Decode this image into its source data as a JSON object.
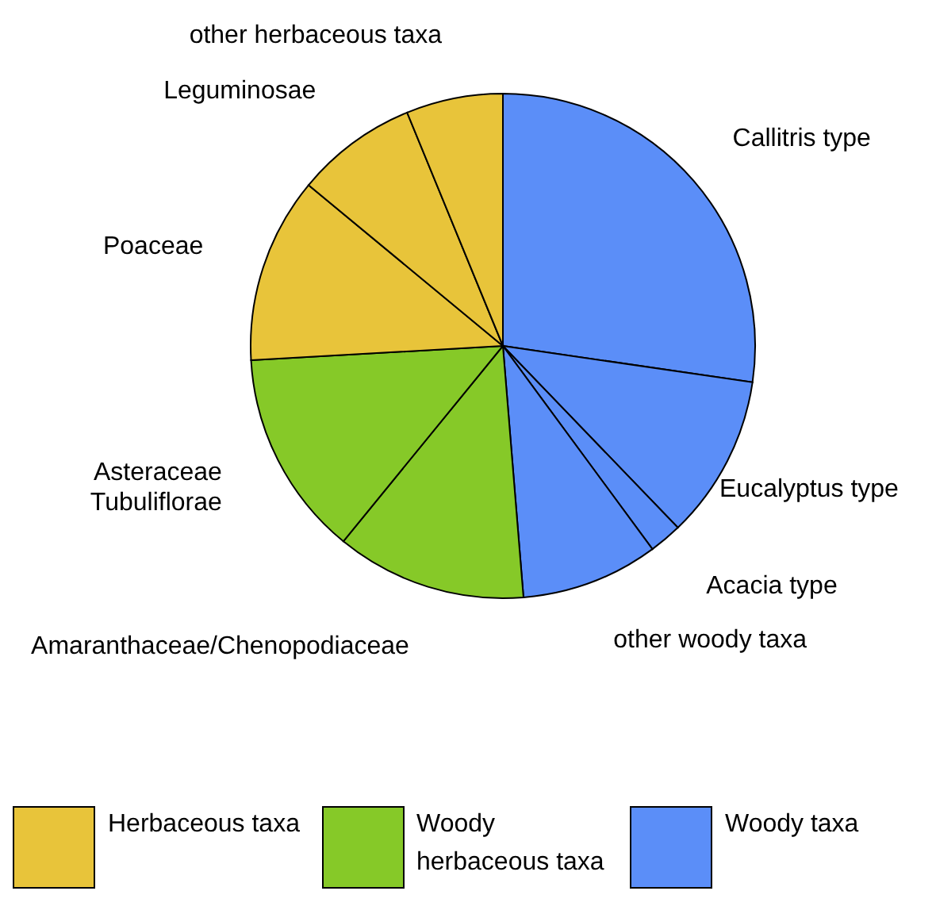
{
  "chart_data": {
    "type": "pie",
    "categories": [
      "Callitris type",
      "Eucalyptus type",
      "Acacia type",
      "other woody taxa",
      "Amaranthaceae/Chenopodiaceae",
      "Asteraceae Tubuliflorae",
      "Poaceae",
      "Leguminosae",
      "other herbaceous taxa"
    ],
    "values": [
      27.3,
      10.5,
      2.1,
      8.8,
      12.2,
      13.2,
      11.9,
      7.8,
      6.2
    ],
    "colors": [
      "#5b8ef8",
      "#5b8ef8",
      "#5b8ef8",
      "#5b8ef8",
      "#86c928",
      "#86c928",
      "#e8c43a",
      "#e8c43a",
      "#e8c43a"
    ],
    "annotations": [
      "Herbaceous taxa",
      "Woody herbaceous taxa",
      "Woody taxa"
    ]
  }
}
